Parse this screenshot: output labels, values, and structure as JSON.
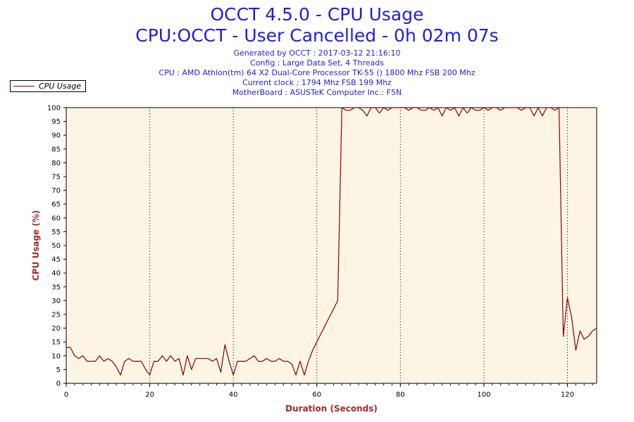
{
  "header": {
    "title": "OCCT 4.5.0 - CPU Usage",
    "subtitle": "CPU:OCCT - User Cancelled - 0h 02m 07s",
    "info_lines": [
      "Generated by OCCT : 2017-03-12 21:16:10",
      "Config : Large Data Set, 4 Threads",
      "CPU : AMD Athlon(tm) 64 X2 Dual-Core Processor TK-55 () 1800 Mhz FSB 200 Mhz",
      "Current clock : 1794 Mhz FSB 199 Mhz",
      "MotherBoard : ASUSTeK Computer Inc.: F5N"
    ]
  },
  "legend": {
    "label": "CPU Usage"
  },
  "colors": {
    "line": "#8b0000",
    "plot_bg": "#fdf5e4",
    "title": "#1f1fd0",
    "axis_label": "#a52a2a"
  },
  "chart_data": {
    "type": "line",
    "title": "OCCT 4.5.0 - CPU Usage",
    "xlabel": "Duration (Seconds)",
    "ylabel": "CPU Usage (%)",
    "xlim": [
      0,
      127
    ],
    "ylim": [
      0,
      100
    ],
    "xticks": [
      0,
      20,
      40,
      60,
      80,
      100,
      120
    ],
    "yticks": [
      0,
      5,
      10,
      15,
      20,
      25,
      30,
      35,
      40,
      45,
      50,
      55,
      60,
      65,
      70,
      75,
      80,
      85,
      90,
      95,
      100
    ],
    "grid": "vertical dotted",
    "series": [
      {
        "name": "CPU Usage",
        "x": [
          0,
          1,
          2,
          3,
          4,
          5,
          6,
          7,
          8,
          9,
          10,
          11,
          12,
          13,
          14,
          15,
          16,
          17,
          18,
          19,
          20,
          21,
          22,
          23,
          24,
          25,
          26,
          27,
          28,
          29,
          30,
          31,
          32,
          33,
          34,
          35,
          36,
          37,
          38,
          39,
          40,
          41,
          42,
          43,
          44,
          45,
          46,
          47,
          48,
          49,
          50,
          51,
          52,
          53,
          54,
          55,
          56,
          57,
          58,
          59,
          60,
          61,
          62,
          63,
          64,
          65,
          66,
          67,
          68,
          69,
          70,
          71,
          72,
          73,
          74,
          75,
          76,
          77,
          78,
          79,
          80,
          81,
          82,
          83,
          84,
          85,
          86,
          87,
          88,
          89,
          90,
          91,
          92,
          93,
          94,
          95,
          96,
          97,
          98,
          99,
          100,
          101,
          102,
          103,
          104,
          105,
          106,
          107,
          108,
          109,
          110,
          111,
          112,
          113,
          114,
          115,
          116,
          117,
          118,
          119,
          120,
          121,
          122,
          123,
          124,
          125,
          126,
          127
        ],
        "values": [
          13,
          13,
          10,
          9,
          10,
          8,
          8,
          8,
          10,
          8,
          9,
          8,
          6,
          3,
          8,
          9,
          8,
          8,
          8,
          5,
          3,
          8,
          8,
          10,
          8,
          10,
          8,
          9,
          3,
          10,
          5,
          9,
          9,
          9,
          9,
          8,
          9,
          4,
          14,
          8,
          3,
          8,
          8,
          8,
          9,
          10,
          8,
          8,
          9,
          8,
          8,
          9,
          8,
          8,
          7,
          3,
          8,
          3,
          8,
          12,
          15,
          18,
          21,
          24,
          27,
          30,
          100,
          99,
          99,
          100,
          100,
          99,
          97,
          100,
          100,
          98,
          100,
          99,
          100,
          100,
          100,
          100,
          99,
          100,
          100,
          99,
          99,
          100,
          99,
          100,
          97,
          100,
          99,
          100,
          97,
          100,
          98,
          100,
          99,
          99,
          100,
          99,
          100,
          100,
          99,
          100,
          100,
          100,
          100,
          99,
          100,
          100,
          97,
          100,
          97,
          100,
          100,
          99,
          100,
          17,
          31,
          24,
          12,
          19,
          16,
          17,
          19,
          20
        ]
      }
    ]
  }
}
